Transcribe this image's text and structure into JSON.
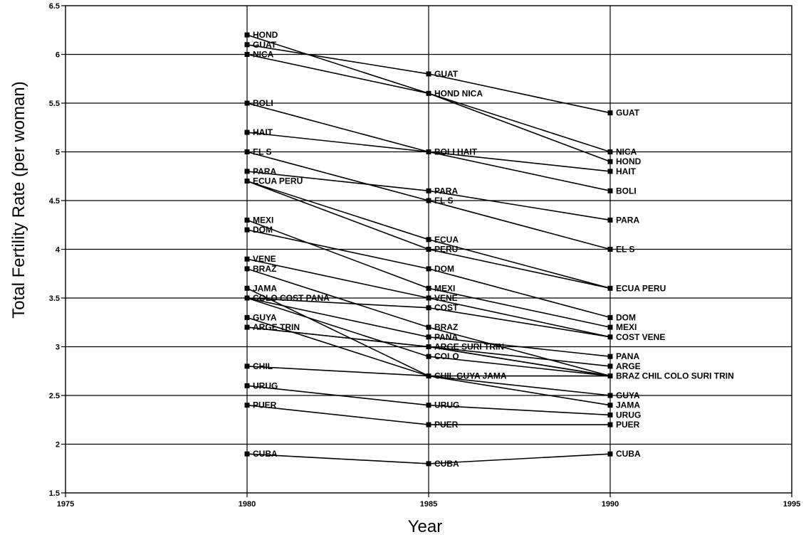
{
  "chart_data": {
    "type": "line",
    "xlabel": "Year",
    "ylabel": "Total Fertility Rate (per woman)",
    "xlim": [
      1975,
      1995
    ],
    "ylim": [
      1.5,
      6.5
    ],
    "x_ticks": [
      1975,
      1980,
      1985,
      1990,
      1995
    ],
    "x_tick_labels": [
      "1975",
      "1980",
      "1985",
      "1990",
      "1995"
    ],
    "y_ticks": [
      1.5,
      2,
      2.5,
      3,
      3.5,
      4,
      4.5,
      5,
      5.5,
      6,
      6.5
    ],
    "y_tick_labels": [
      "1.5",
      "2",
      "2.5",
      "3",
      "3.5",
      "4",
      "4.5",
      "5",
      "5.5",
      "6",
      "6.5"
    ],
    "grid": true,
    "x": [
      1980,
      1985,
      1990
    ],
    "series": [
      {
        "name": "HOND",
        "values": [
          6.2,
          5.6,
          4.9
        ]
      },
      {
        "name": "GUAT",
        "values": [
          6.1,
          5.8,
          5.4
        ]
      },
      {
        "name": "NICA",
        "values": [
          6.0,
          5.6,
          5.0
        ]
      },
      {
        "name": "BOLI",
        "values": [
          5.5,
          5.0,
          4.6
        ]
      },
      {
        "name": "HAIT",
        "values": [
          5.2,
          5.0,
          4.8
        ]
      },
      {
        "name": "EL S",
        "values": [
          5.0,
          4.5,
          4.0
        ]
      },
      {
        "name": "PARA",
        "values": [
          4.8,
          4.6,
          4.3
        ]
      },
      {
        "name": "ECUA",
        "values": [
          4.7,
          4.1,
          3.6
        ]
      },
      {
        "name": "PERU",
        "values": [
          4.7,
          4.0,
          3.6
        ]
      },
      {
        "name": "MEXI",
        "values": [
          4.3,
          3.6,
          3.2
        ]
      },
      {
        "name": "DOM",
        "values": [
          4.2,
          3.8,
          3.3
        ]
      },
      {
        "name": "VENE",
        "values": [
          3.9,
          3.5,
          3.1
        ]
      },
      {
        "name": "BRAZ",
        "values": [
          3.8,
          3.2,
          2.7
        ]
      },
      {
        "name": "JAMA",
        "values": [
          3.6,
          2.7,
          2.4
        ]
      },
      {
        "name": "COLO",
        "values": [
          3.5,
          2.9,
          2.7
        ]
      },
      {
        "name": "COST",
        "values": [
          3.5,
          3.4,
          3.1
        ]
      },
      {
        "name": "PANA",
        "values": [
          3.5,
          3.1,
          2.9
        ]
      },
      {
        "name": "GUYA",
        "values": [
          3.3,
          2.7,
          2.5
        ]
      },
      {
        "name": "ARGE",
        "values": [
          3.2,
          3.0,
          2.8
        ]
      },
      {
        "name": "TRIN",
        "values": [
          3.2,
          3.0,
          2.7
        ]
      },
      {
        "name": "SURI",
        "values": [
          null,
          3.0,
          2.7
        ]
      },
      {
        "name": "CHIL",
        "values": [
          2.8,
          2.7,
          2.7
        ]
      },
      {
        "name": "URUG",
        "values": [
          2.6,
          2.4,
          2.3
        ]
      },
      {
        "name": "PUER",
        "values": [
          2.4,
          2.2,
          2.2
        ]
      },
      {
        "name": "CUBA",
        "values": [
          1.9,
          1.8,
          1.9
        ]
      }
    ],
    "point_labels": [
      {
        "year": 1980,
        "y": 6.2,
        "text": "HOND"
      },
      {
        "year": 1980,
        "y": 6.1,
        "text": "GUAT"
      },
      {
        "year": 1980,
        "y": 6.0,
        "text": "NICA"
      },
      {
        "year": 1980,
        "y": 5.5,
        "text": "BOLI"
      },
      {
        "year": 1980,
        "y": 5.2,
        "text": "HAIT"
      },
      {
        "year": 1980,
        "y": 5.0,
        "text": "EL S"
      },
      {
        "year": 1980,
        "y": 4.8,
        "text": "PARA"
      },
      {
        "year": 1980,
        "y": 4.7,
        "text": "ECUA PERU"
      },
      {
        "year": 1980,
        "y": 4.3,
        "text": "MEXI"
      },
      {
        "year": 1980,
        "y": 4.2,
        "text": "DOM"
      },
      {
        "year": 1980,
        "y": 3.9,
        "text": "VENE"
      },
      {
        "year": 1980,
        "y": 3.8,
        "text": "BRAZ"
      },
      {
        "year": 1980,
        "y": 3.6,
        "text": "JAMA"
      },
      {
        "year": 1980,
        "y": 3.5,
        "text": "COLO COST PANA"
      },
      {
        "year": 1980,
        "y": 3.3,
        "text": "GUYA"
      },
      {
        "year": 1980,
        "y": 3.2,
        "text": "ARGE TRIN"
      },
      {
        "year": 1980,
        "y": 2.8,
        "text": "CHIL"
      },
      {
        "year": 1980,
        "y": 2.6,
        "text": "URUG"
      },
      {
        "year": 1980,
        "y": 2.4,
        "text": "PUER"
      },
      {
        "year": 1980,
        "y": 1.9,
        "text": "CUBA"
      },
      {
        "year": 1985,
        "y": 5.8,
        "text": "GUAT"
      },
      {
        "year": 1985,
        "y": 5.6,
        "text": "HOND NICA"
      },
      {
        "year": 1985,
        "y": 5.0,
        "text": "BOLI  HAIT"
      },
      {
        "year": 1985,
        "y": 4.6,
        "text": "PARA"
      },
      {
        "year": 1985,
        "y": 4.5,
        "text": "EL S"
      },
      {
        "year": 1985,
        "y": 4.1,
        "text": "ECUA"
      },
      {
        "year": 1985,
        "y": 4.0,
        "text": "PERU"
      },
      {
        "year": 1985,
        "y": 3.8,
        "text": "DOM"
      },
      {
        "year": 1985,
        "y": 3.6,
        "text": "MEXI"
      },
      {
        "year": 1985,
        "y": 3.5,
        "text": "VENE"
      },
      {
        "year": 1985,
        "y": 3.4,
        "text": "COST"
      },
      {
        "year": 1985,
        "y": 3.2,
        "text": "BRAZ"
      },
      {
        "year": 1985,
        "y": 3.1,
        "text": "PANA"
      },
      {
        "year": 1985,
        "y": 3.0,
        "text": "ARGE SURI  TRIN"
      },
      {
        "year": 1985,
        "y": 2.9,
        "text": "COLO"
      },
      {
        "year": 1985,
        "y": 2.7,
        "text": "CHIL  GUYA JAMA"
      },
      {
        "year": 1985,
        "y": 2.4,
        "text": "URUG"
      },
      {
        "year": 1985,
        "y": 2.2,
        "text": "PUER"
      },
      {
        "year": 1985,
        "y": 1.8,
        "text": "CUBA"
      },
      {
        "year": 1990,
        "y": 5.4,
        "text": "GUAT"
      },
      {
        "year": 1990,
        "y": 5.0,
        "text": "NICA"
      },
      {
        "year": 1990,
        "y": 4.9,
        "text": "HOND"
      },
      {
        "year": 1990,
        "y": 4.8,
        "text": "HAIT"
      },
      {
        "year": 1990,
        "y": 4.6,
        "text": "BOLI"
      },
      {
        "year": 1990,
        "y": 4.3,
        "text": "PARA"
      },
      {
        "year": 1990,
        "y": 4.0,
        "text": "EL S"
      },
      {
        "year": 1990,
        "y": 3.6,
        "text": "ECUA PERU"
      },
      {
        "year": 1990,
        "y": 3.3,
        "text": "DOM"
      },
      {
        "year": 1990,
        "y": 3.2,
        "text": "MEXI"
      },
      {
        "year": 1990,
        "y": 3.1,
        "text": "COST VENE"
      },
      {
        "year": 1990,
        "y": 2.9,
        "text": "PANA"
      },
      {
        "year": 1990,
        "y": 2.8,
        "text": "ARGE"
      },
      {
        "year": 1990,
        "y": 2.7,
        "text": "BRAZ  CHIL   COLO SURI   TRIN"
      },
      {
        "year": 1990,
        "y": 2.5,
        "text": "GUYA"
      },
      {
        "year": 1990,
        "y": 2.4,
        "text": "JAMA"
      },
      {
        "year": 1990,
        "y": 2.3,
        "text": "URUG"
      },
      {
        "year": 1990,
        "y": 2.2,
        "text": "PUER"
      },
      {
        "year": 1990,
        "y": 1.9,
        "text": "CUBA"
      }
    ]
  }
}
